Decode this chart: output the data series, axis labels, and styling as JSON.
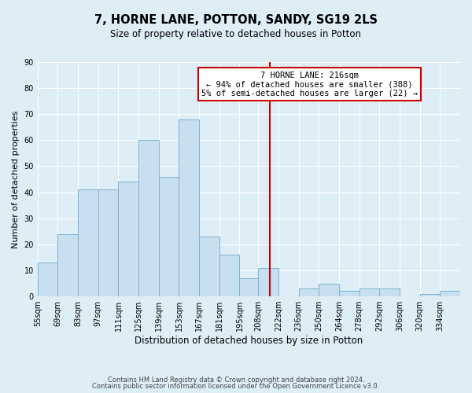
{
  "title": "7, HORNE LANE, POTTON, SANDY, SG19 2LS",
  "subtitle": "Size of property relative to detached houses in Potton",
  "xlabel": "Distribution of detached houses by size in Potton",
  "ylabel": "Number of detached properties",
  "bin_labels": [
    "55sqm",
    "69sqm",
    "83sqm",
    "97sqm",
    "111sqm",
    "125sqm",
    "139sqm",
    "153sqm",
    "167sqm",
    "181sqm",
    "195sqm",
    "208sqm",
    "222sqm",
    "236sqm",
    "250sqm",
    "264sqm",
    "278sqm",
    "292sqm",
    "306sqm",
    "320sqm",
    "334sqm"
  ],
  "bin_edges": [
    55,
    69,
    83,
    97,
    111,
    125,
    139,
    153,
    167,
    181,
    195,
    208,
    222,
    236,
    250,
    264,
    278,
    292,
    306,
    320,
    334,
    348
  ],
  "counts": [
    13,
    24,
    41,
    41,
    44,
    60,
    46,
    68,
    23,
    16,
    7,
    11,
    0,
    3,
    5,
    2,
    3,
    3,
    0,
    1,
    2
  ],
  "bar_color": "#c8dff0",
  "bar_edge_color": "#7fb3d3",
  "property_line_x": 216,
  "property_line_color": "#cc0000",
  "annotation_title": "7 HORNE LANE: 216sqm",
  "annotation_line1": "← 94% of detached houses are smaller (388)",
  "annotation_line2": "5% of semi-detached houses are larger (22) →",
  "annotation_box_facecolor": "#ffffff",
  "annotation_box_edgecolor": "#cc0000",
  "ylim": [
    0,
    90
  ],
  "yticks": [
    0,
    10,
    20,
    30,
    40,
    50,
    60,
    70,
    80,
    90
  ],
  "footer1": "Contains HM Land Registry data © Crown copyright and database right 2024.",
  "footer2": "Contains public sector information licensed under the Open Government Licence v3.0.",
  "background_color": "#ddeef7",
  "plot_bg_color": "#ddeef7",
  "grid_color": "#ffffff",
  "title_fontsize": 10.5,
  "subtitle_fontsize": 8.5,
  "ylabel_fontsize": 8,
  "xlabel_fontsize": 8.5,
  "tick_fontsize": 7,
  "footer_fontsize": 6,
  "ann_fontsize": 7.5
}
